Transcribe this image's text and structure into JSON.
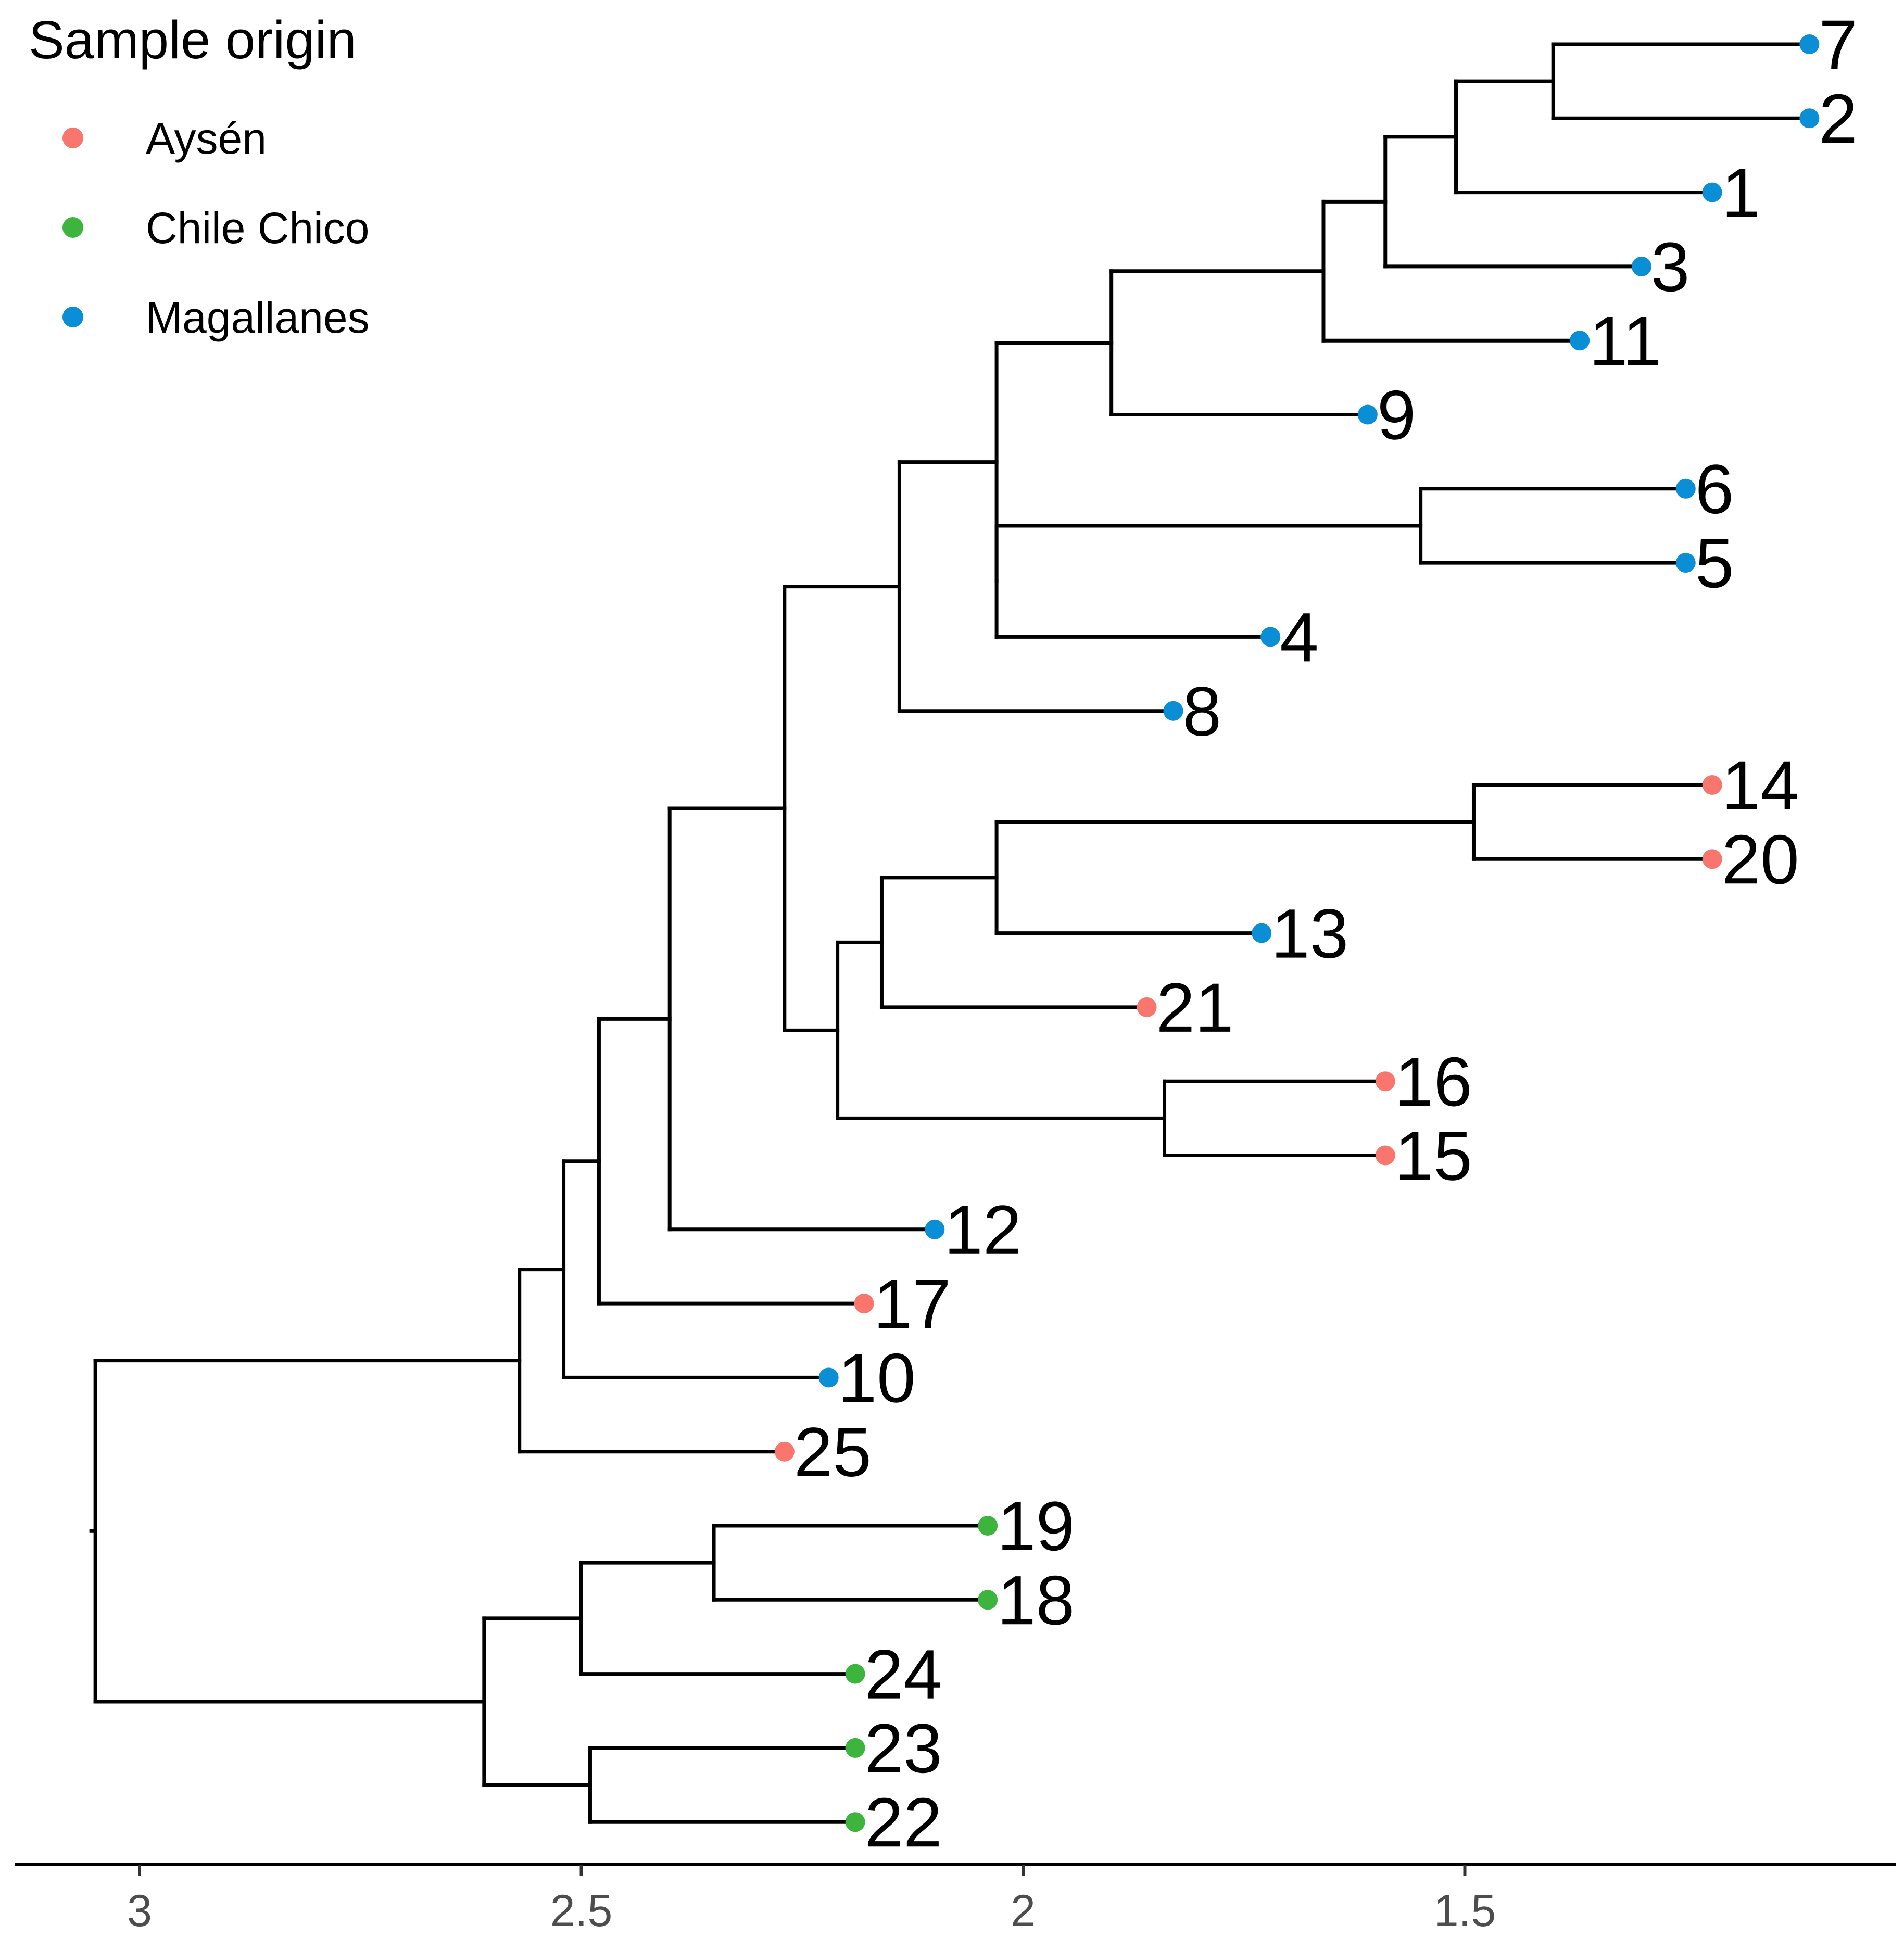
{
  "chart_data": {
    "type": "dendrogram",
    "title": "",
    "xlabel": "",
    "ylabel": "",
    "xaxis": {
      "reversed": true,
      "xlim": [
        3.14,
        1.0
      ],
      "ticks": [
        3,
        2.5,
        2,
        1.5
      ],
      "tick_labels": [
        "3",
        "2.5",
        "2",
        "1.5"
      ]
    },
    "legend": {
      "title": "Sample origin",
      "position": "top-left",
      "entries": [
        {
          "id": "aysen",
          "label": "Aysén",
          "color": "#F8766D"
        },
        {
          "id": "chile-chico",
          "label": "Chile Chico",
          "color": "#3DB43D"
        },
        {
          "id": "magallanes",
          "label": "Magallanes",
          "color": "#0A8FD6"
        }
      ]
    },
    "leaf_order": [
      "7",
      "2",
      "1",
      "3",
      "11",
      "9",
      "6",
      "5",
      "4",
      "8",
      "14",
      "20",
      "13",
      "21",
      "16",
      "15",
      "12",
      "17",
      "10",
      "25",
      "19",
      "18",
      "24",
      "23",
      "22"
    ],
    "leaves": [
      {
        "label": "7",
        "height": 1.11,
        "origin": "magallanes"
      },
      {
        "label": "2",
        "height": 1.11,
        "origin": "magallanes"
      },
      {
        "label": "1",
        "height": 1.22,
        "origin": "magallanes"
      },
      {
        "label": "3",
        "height": 1.3,
        "origin": "magallanes"
      },
      {
        "label": "11",
        "height": 1.37,
        "origin": "magallanes"
      },
      {
        "label": "9",
        "height": 1.61,
        "origin": "magallanes"
      },
      {
        "label": "6",
        "height": 1.25,
        "origin": "magallanes"
      },
      {
        "label": "5",
        "height": 1.25,
        "origin": "magallanes"
      },
      {
        "label": "4",
        "height": 1.72,
        "origin": "magallanes"
      },
      {
        "label": "8",
        "height": 1.83,
        "origin": "magallanes"
      },
      {
        "label": "14",
        "height": 1.22,
        "origin": "aysen"
      },
      {
        "label": "20",
        "height": 1.22,
        "origin": "aysen"
      },
      {
        "label": "13",
        "height": 1.73,
        "origin": "magallanes"
      },
      {
        "label": "21",
        "height": 1.86,
        "origin": "aysen"
      },
      {
        "label": "16",
        "height": 1.59,
        "origin": "aysen"
      },
      {
        "label": "15",
        "height": 1.59,
        "origin": "aysen"
      },
      {
        "label": "12",
        "height": 2.1,
        "origin": "magallanes"
      },
      {
        "label": "17",
        "height": 2.18,
        "origin": "aysen"
      },
      {
        "label": "10",
        "height": 2.22,
        "origin": "magallanes"
      },
      {
        "label": "25",
        "height": 2.27,
        "origin": "aysen"
      },
      {
        "label": "19",
        "height": 2.04,
        "origin": "chile-chico"
      },
      {
        "label": "18",
        "height": 2.04,
        "origin": "chile-chico"
      },
      {
        "label": "24",
        "height": 2.19,
        "origin": "chile-chico"
      },
      {
        "label": "23",
        "height": 2.19,
        "origin": "chile-chico"
      },
      {
        "label": "22",
        "height": 2.19,
        "origin": "chile-chico"
      }
    ],
    "merges": [
      {
        "left": "7",
        "right": "2",
        "height": 1.4
      },
      {
        "left": "m1",
        "right": "1",
        "height": 1.51
      },
      {
        "left": "m2",
        "right": "3",
        "height": 1.59
      },
      {
        "left": "m3",
        "right": "11",
        "height": 1.66
      },
      {
        "left": "m4",
        "right": "9",
        "height": 1.9
      },
      {
        "left": "6",
        "right": "5",
        "height": 1.55
      },
      {
        "left": "m6",
        "right": "4",
        "height": 2.03
      },
      {
        "left": "m5",
        "right": "m7",
        "height": 2.03
      },
      {
        "left": "m8",
        "right": "8",
        "height": 2.14
      },
      {
        "left": "14",
        "right": "20",
        "height": 1.49
      },
      {
        "left": "m10",
        "right": "13",
        "height": 2.03
      },
      {
        "left": "m11",
        "right": "21",
        "height": 2.16
      },
      {
        "left": "16",
        "right": "15",
        "height": 1.84
      },
      {
        "left": "m12",
        "right": "m13",
        "height": 2.21
      },
      {
        "left": "m9",
        "right": "m14",
        "height": 2.27
      },
      {
        "left": "m15",
        "right": "12",
        "height": 2.4
      },
      {
        "left": "m16",
        "right": "17",
        "height": 2.48
      },
      {
        "left": "m17",
        "right": "10",
        "height": 2.52
      },
      {
        "left": "m18",
        "right": "25",
        "height": 2.57
      },
      {
        "left": "19",
        "right": "18",
        "height": 2.35
      },
      {
        "left": "m20",
        "right": "24",
        "height": 2.5
      },
      {
        "left": "23",
        "right": "22",
        "height": 2.49
      },
      {
        "left": "m21",
        "right": "m22",
        "height": 2.61
      },
      {
        "left": "m19",
        "right": "m23",
        "height": 3.05
      }
    ]
  }
}
